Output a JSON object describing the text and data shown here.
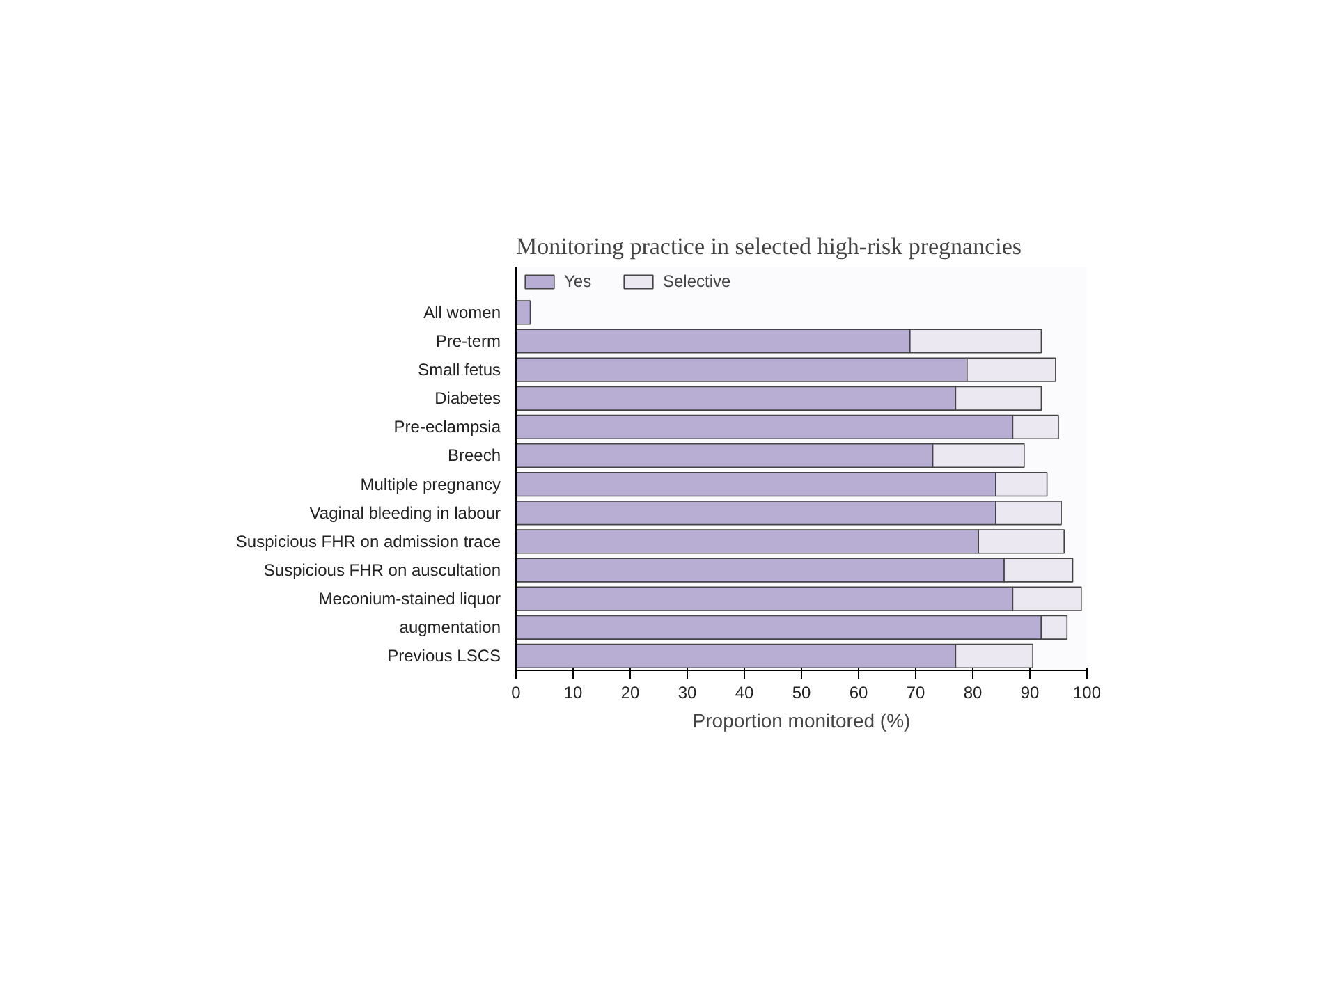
{
  "chart_data": {
    "type": "bar",
    "orientation": "horizontal",
    "stacked": true,
    "title": "Monitoring practice in selected high-risk pregnancies",
    "xlabel": "Proportion monitored (%)",
    "categories": [
      "All women",
      "Pre-term",
      "Small fetus",
      "Diabetes",
      "Pre-eclampsia",
      "Breech",
      "Multiple pregnancy",
      "Vaginal bleeding in labour",
      "Suspicious FHR on admission trace",
      "Suspicious FHR on auscultation",
      "Meconium-stained liquor",
      "augmentation",
      "Previous LSCS"
    ],
    "series": [
      {
        "name": "Yes",
        "color": "#b8aed4",
        "values": [
          2.5,
          69,
          79,
          77,
          87,
          73,
          84,
          84,
          81,
          85.5,
          87,
          92,
          77
        ]
      },
      {
        "name": "Selective",
        "color": "#ebe8f2",
        "values": [
          null,
          23,
          15.5,
          15,
          8,
          16,
          9,
          11.5,
          15,
          12,
          12,
          4.5,
          13.5
        ]
      }
    ],
    "xlim": [
      0,
      100
    ],
    "xticks": [
      0,
      10,
      20,
      30,
      40,
      50,
      60,
      70,
      80,
      90,
      100
    ],
    "grid": false,
    "legend": "top"
  }
}
